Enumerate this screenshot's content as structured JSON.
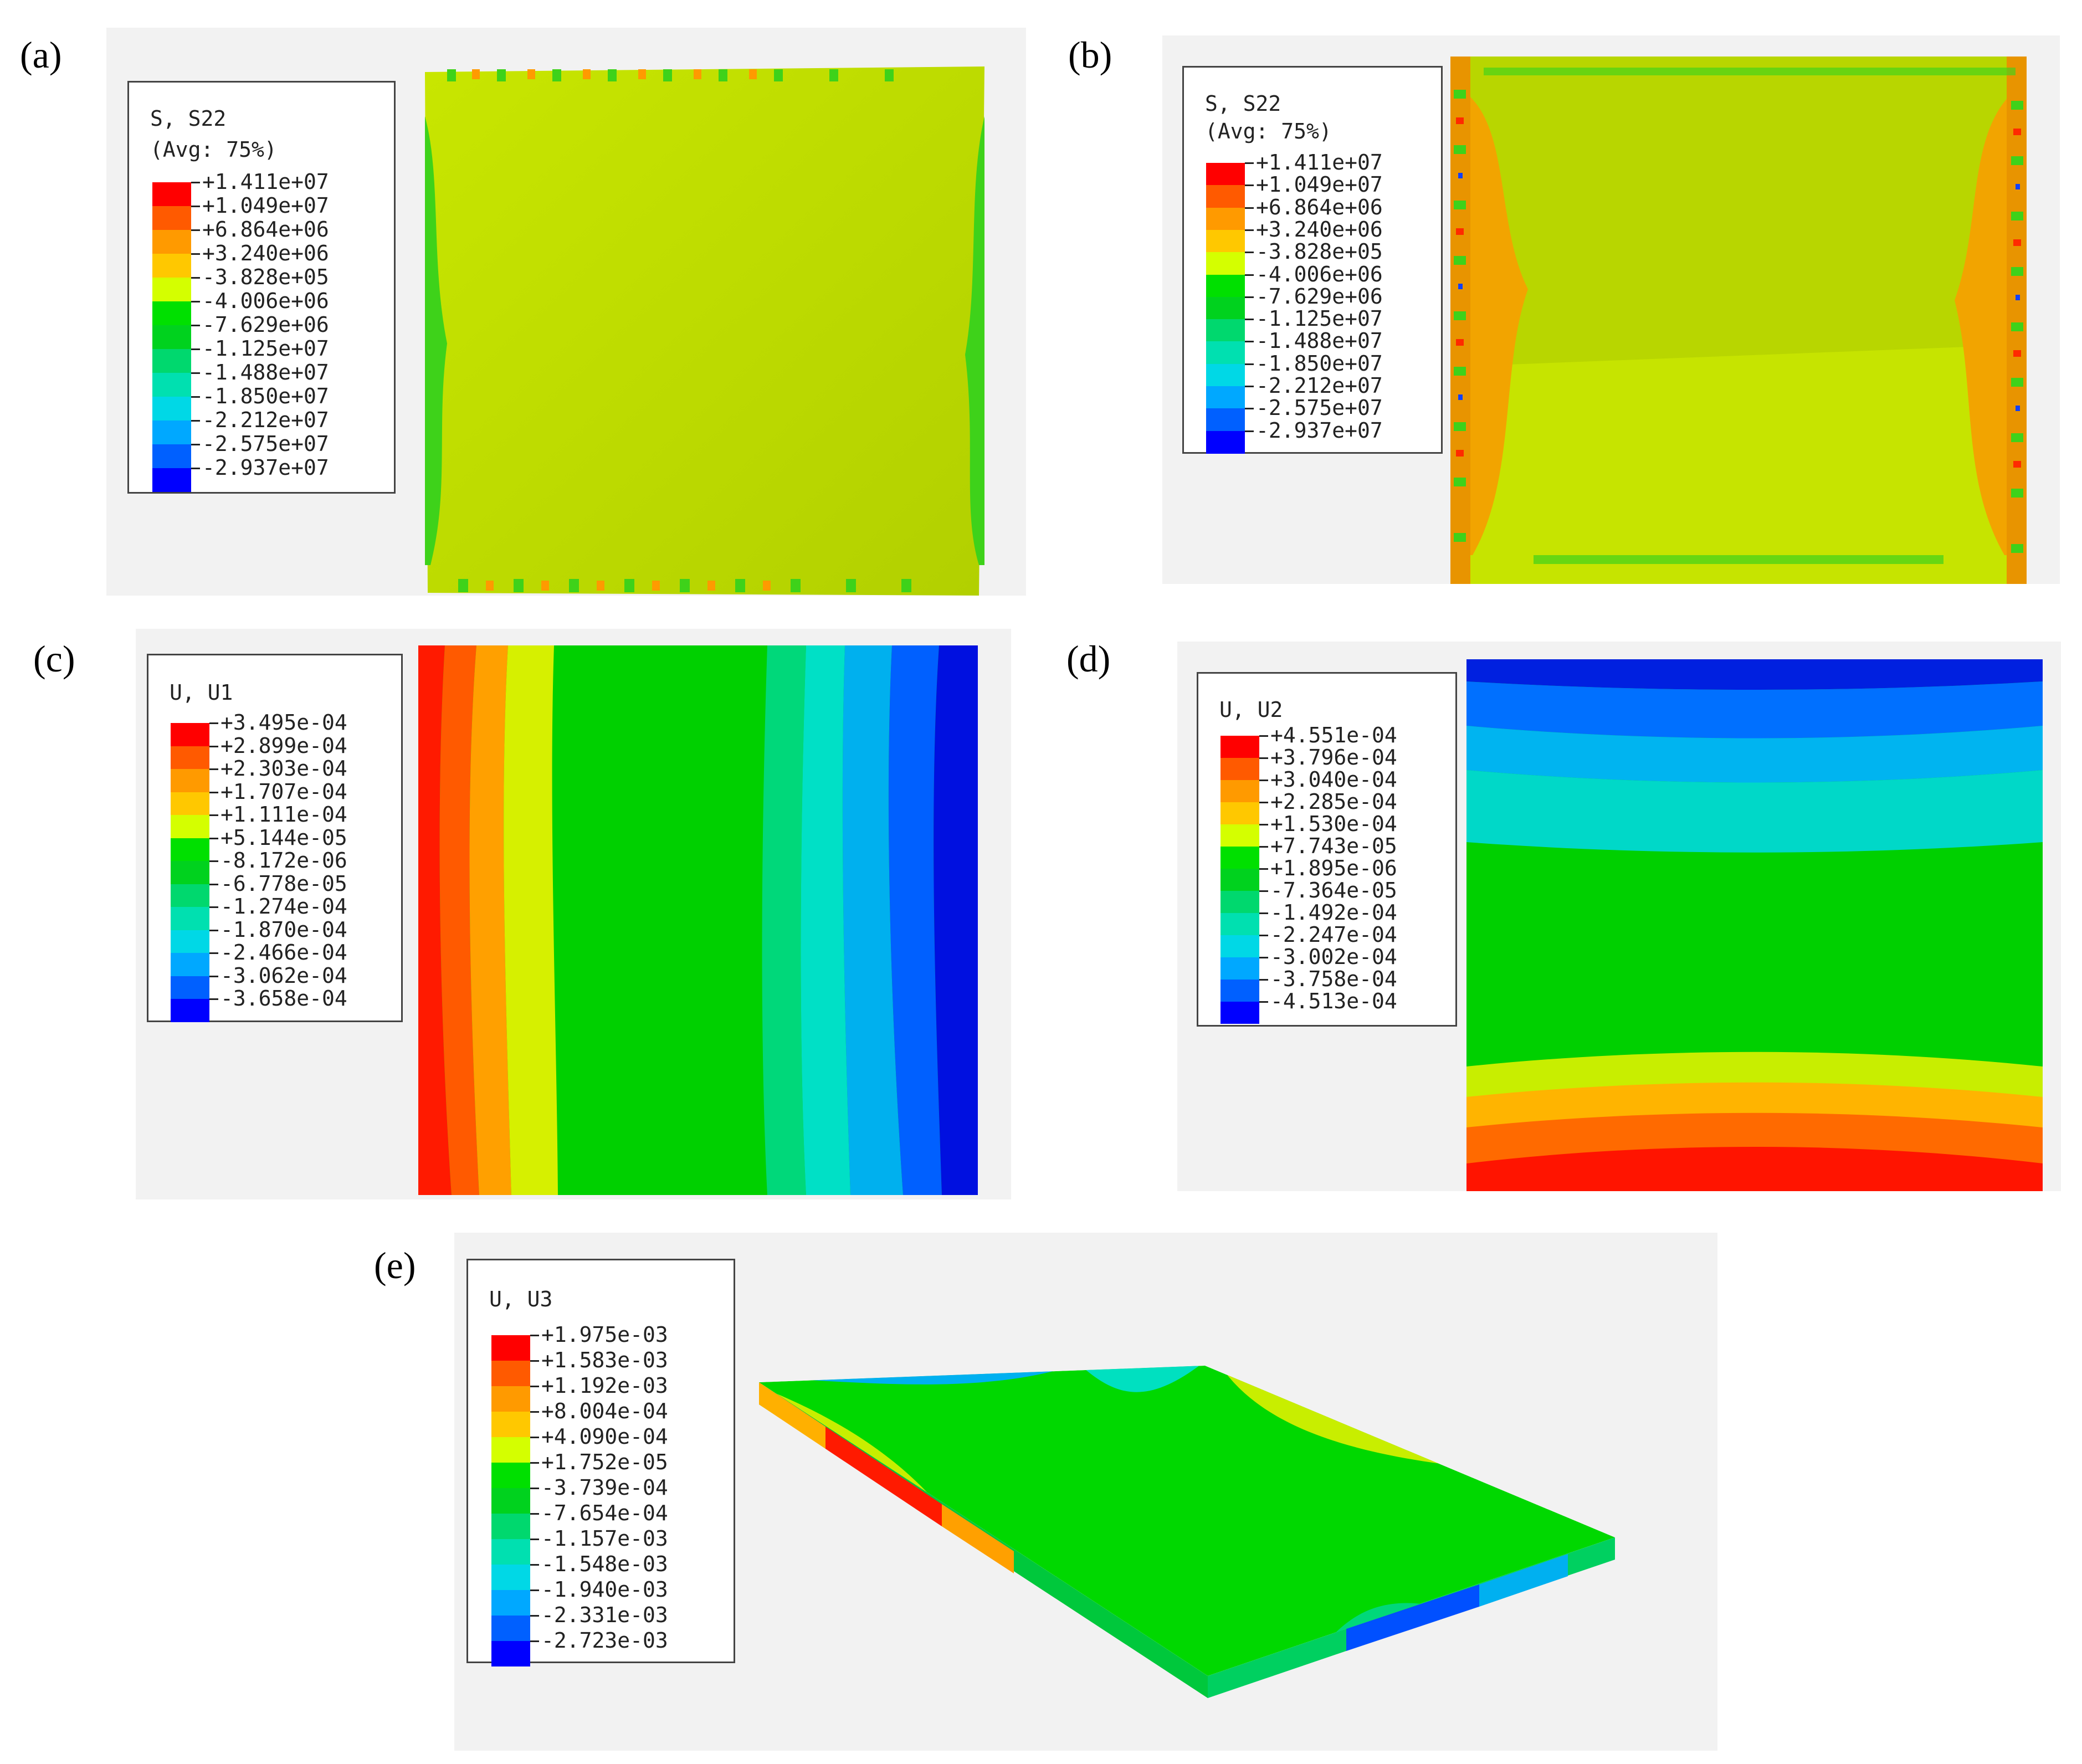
{
  "panels": {
    "a": {
      "label": "(a)",
      "legend_title": "S, S22",
      "legend_subtitle": "(Avg: 75%)",
      "legend_values": [
        "+1.411e+07",
        "+1.049e+07",
        "+6.864e+06",
        "+3.240e+06",
        "-3.828e+05",
        "-4.006e+06",
        "-7.629e+06",
        "-1.125e+07",
        "-1.488e+07",
        "-1.850e+07",
        "-2.212e+07",
        "-2.575e+07",
        "-2.937e+07"
      ]
    },
    "b": {
      "label": "(b)",
      "legend_title": "S, S22",
      "legend_subtitle": "(Avg: 75%)",
      "legend_values": [
        "+1.411e+07",
        "+1.049e+07",
        "+6.864e+06",
        "+3.240e+06",
        "-3.828e+05",
        "-4.006e+06",
        "-7.629e+06",
        "-1.125e+07",
        "-1.488e+07",
        "-1.850e+07",
        "-2.212e+07",
        "-2.575e+07",
        "-2.937e+07"
      ]
    },
    "c": {
      "label": "(c)",
      "legend_title": "U, U1",
      "legend_values": [
        "+3.495e-04",
        "+2.899e-04",
        "+2.303e-04",
        "+1.707e-04",
        "+1.111e-04",
        "+5.144e-05",
        "-8.172e-06",
        "-6.778e-05",
        "-1.274e-04",
        "-1.870e-04",
        "-2.466e-04",
        "-3.062e-04",
        "-3.658e-04"
      ]
    },
    "d": {
      "label": "(d)",
      "legend_title": "U, U2",
      "legend_values": [
        "+4.551e-04",
        "+3.796e-04",
        "+3.040e-04",
        "+2.285e-04",
        "+1.530e-04",
        "+7.743e-05",
        "+1.895e-06",
        "-7.364e-05",
        "-1.492e-04",
        "-2.247e-04",
        "-3.002e-04",
        "-3.758e-04",
        "-4.513e-04"
      ]
    },
    "e": {
      "label": "(e)",
      "legend_title": "U, U3",
      "legend_values": [
        "+1.975e-03",
        "+1.583e-03",
        "+1.192e-03",
        "+8.004e-04",
        "+4.090e-04",
        "+1.752e-05",
        "-3.739e-04",
        "-7.654e-04",
        "-1.157e-03",
        "-1.548e-03",
        "-1.940e-03",
        "-2.331e-03",
        "-2.723e-03"
      ]
    }
  },
  "colors": {
    "scale": [
      "#ff0000",
      "#ff5a00",
      "#ff9a00",
      "#ffc800",
      "#d4ff00",
      "#00e000",
      "#00d21e",
      "#00d86e",
      "#00e0b0",
      "#00d8e6",
      "#00a8ff",
      "#0060ff",
      "#0000ff"
    ],
    "panel_bg": "#f2f2f2"
  }
}
